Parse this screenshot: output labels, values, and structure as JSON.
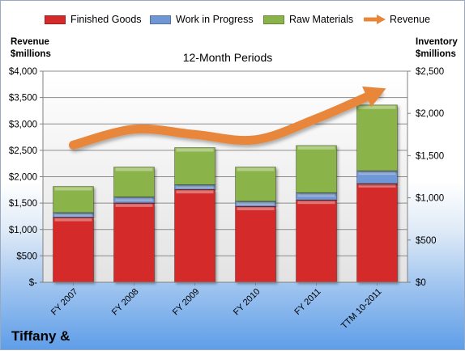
{
  "chart_data": {
    "type": "bar",
    "stacked": true,
    "title": "12-Month Periods",
    "categories": [
      "FY 2007",
      "FY 2008",
      "FY 2009",
      "FY 2010",
      "FY 2011",
      "TTM 10-2011"
    ],
    "series": [
      {
        "name": "Finished Goods",
        "axis": "right",
        "values": [
          770,
          940,
          1100,
          900,
          975,
          1170
        ],
        "color": "#d42a2a"
      },
      {
        "name": "Work in Progress",
        "axis": "right",
        "values": [
          55,
          70,
          55,
          60,
          85,
          150
        ],
        "color": "#6f97d6"
      },
      {
        "name": "Raw Materials",
        "axis": "right",
        "values": [
          310,
          355,
          440,
          405,
          560,
          780
        ],
        "color": "#8ab449"
      },
      {
        "name": "Revenue",
        "type": "line",
        "axis": "left",
        "values": [
          2600,
          2900,
          2800,
          2700,
          3100,
          3600
        ],
        "color": "#e8873a"
      }
    ],
    "ylabel_left": [
      "Revenue",
      "$millions"
    ],
    "ylabel_right": [
      "Inventory",
      "$millions"
    ],
    "ylim_left": [
      0,
      4000
    ],
    "ylim_right": [
      0,
      2500
    ],
    "yticks_left": [
      "$-",
      "$500",
      "$1,000",
      "$1,500",
      "$2,000",
      "$2,500",
      "$3,000",
      "$3,500",
      "$4,000"
    ],
    "yticks_right": [
      "$0",
      "$500",
      "$1,000",
      "$1,500",
      "$2,000",
      "$2,500"
    ],
    "grid": true,
    "legend": "top"
  },
  "company": "Tiffany &"
}
